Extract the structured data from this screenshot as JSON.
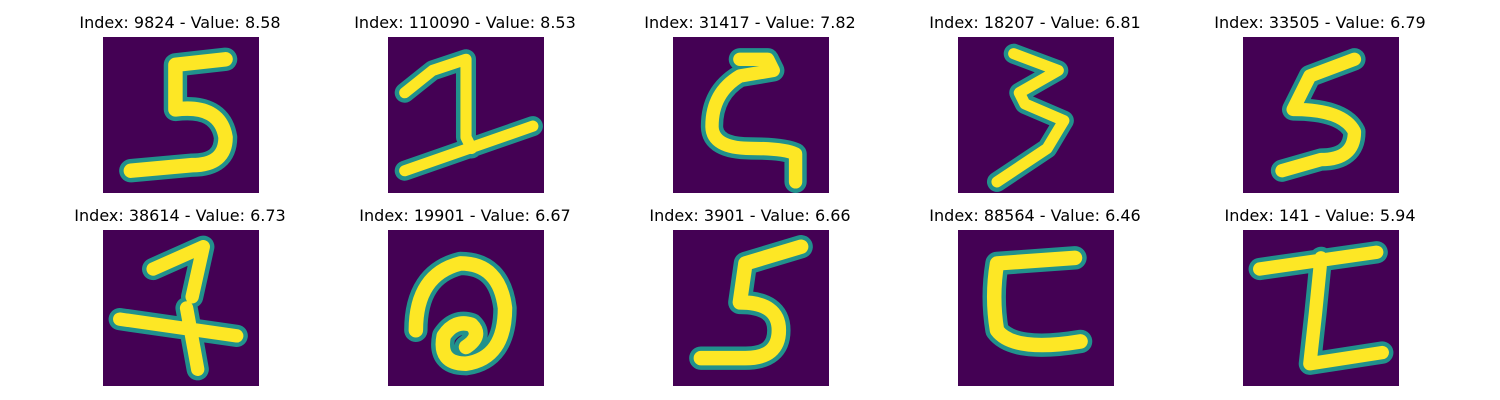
{
  "palette": {
    "background": "#440154",
    "teal": "#21918c",
    "green": "#5ec962",
    "yellow": "#fde725"
  },
  "panels": [
    {
      "title": "Index: 9824 - Value: 8.58",
      "glyph": "digit-5-icon"
    },
    {
      "title": "Index: 110090 - Value: 8.53",
      "glyph": "digit-2-icon"
    },
    {
      "title": "Index: 31417 - Value: 7.82",
      "glyph": "digit-2-rotated-icon"
    },
    {
      "title": "Index: 18207 - Value: 6.81",
      "glyph": "digit-3-icon"
    },
    {
      "title": "Index: 33505 - Value: 6.79",
      "glyph": "digit-5-icon"
    },
    {
      "title": "Index: 38614 - Value: 6.73",
      "glyph": "digit-4-icon"
    },
    {
      "title": "Index: 19901 - Value: 6.67",
      "glyph": "digit-a-icon"
    },
    {
      "title": "Index: 3901 - Value: 6.66",
      "glyph": "digit-5-icon"
    },
    {
      "title": "Index: 88564 - Value: 6.46",
      "glyph": "digit-2-rotated-icon"
    },
    {
      "title": "Index: 141 - Value: 5.94",
      "glyph": "digit-1-icon"
    }
  ]
}
